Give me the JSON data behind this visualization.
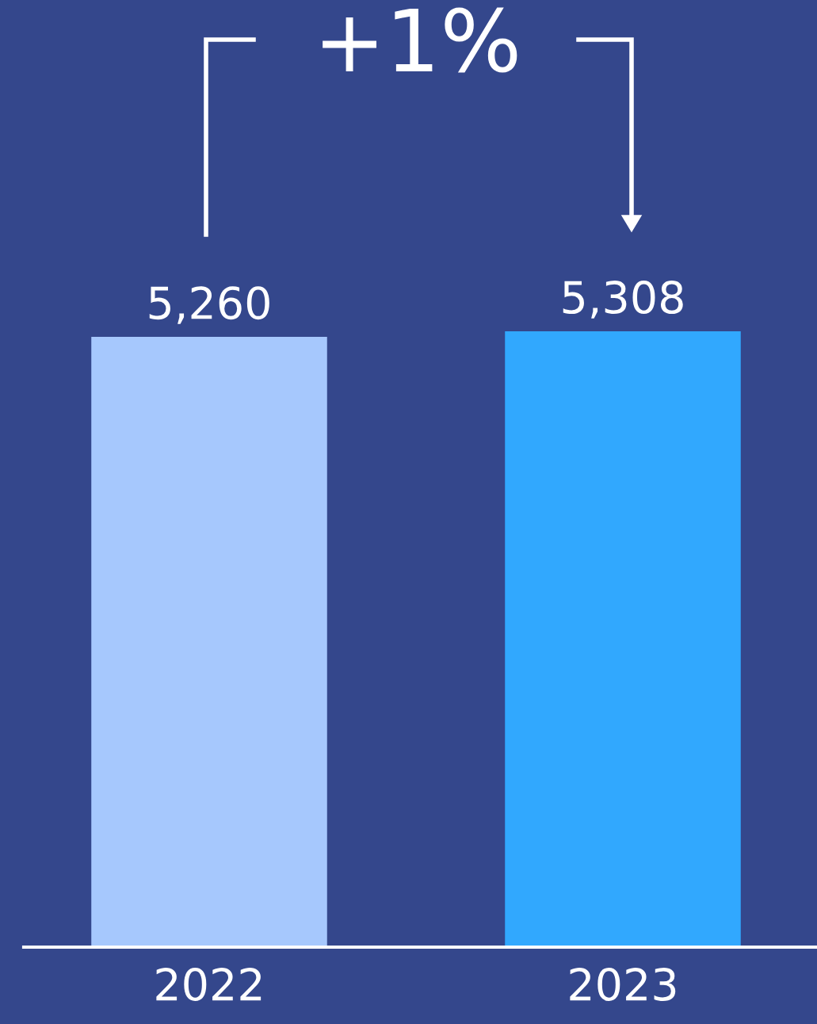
{
  "chart_data": {
    "type": "bar",
    "categories": [
      "2022",
      "2023"
    ],
    "values": [
      5260,
      5308
    ],
    "colors": [
      "#a6c8fd",
      "#31a8fe"
    ],
    "data_labels": true,
    "value_labels": [
      "5,260",
      "5,308"
    ],
    "annotations": [
      "+1%"
    ],
    "grid": false,
    "legend": false
  }
}
